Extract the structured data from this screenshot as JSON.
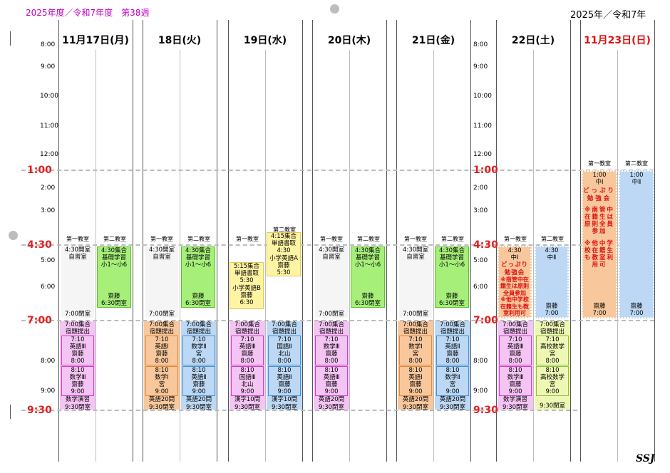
{
  "header": {
    "week_label": "2025年度／令和7年度　第38週",
    "year_label": "2025年／令和7年"
  },
  "days": {
    "mon": "11月17日(月)",
    "tue": "18日(火)",
    "wed": "19日(水)",
    "thu": "20日(木)",
    "fri": "21日(金)",
    "sat": "22日(土)",
    "sun": "11月23日(日)"
  },
  "times": {
    "t800": "8:00",
    "t900": "9:00",
    "t1000": "10:00",
    "t1100": "11:00",
    "t1200": "12:00",
    "t100": "1:00",
    "t200": "2:00",
    "t300": "3:00",
    "t430": "4:30",
    "t500": "5:00",
    "t600": "6:00",
    "t700": "7:00",
    "t930": "9:30"
  },
  "rooms": {
    "r1": "第一教室",
    "r2": "第二教室"
  },
  "t": {
    "jishu_open": "4:30開室",
    "jishu": "自習室",
    "close700": "7:00閉室",
    "g430": "4:30集合",
    "kiso": "基礎学習",
    "sho": "小1～小6",
    "saito": "齋藤",
    "close630": "6:30閉室",
    "g700": "7:00集合",
    "shukudai": "宿題提出",
    "t710": "7:10",
    "t800": "8:00",
    "t810": "8:10",
    "t900": "9:00",
    "eigo3": "英語Ⅲ",
    "sugaku3": "数学Ⅲ",
    "sugaku_ensyu": "数学演習",
    "close930": "9:30閉室",
    "eigo1": "英語Ⅰ",
    "sugaku1": "数学Ⅰ",
    "miya": "宮",
    "sugaku2": "数学Ⅱ",
    "eigo2": "英語Ⅱ",
    "eigo20": "英語20問",
    "kokugo3": "国語Ⅲ",
    "kanji10": "漢字10問",
    "kitayama": "北山",
    "kokugo2": "国語Ⅱ",
    "g415": "4:15集合",
    "tango_sho": "単語書取",
    "t430": "4:30",
    "sho_eigo_a": "小学英語A",
    "t530": "5:30",
    "g515": "5:15集合",
    "sho_eigo_b": "小学英語B",
    "t630": "6:30",
    "chu1": "中Ⅰ",
    "chu2": "中Ⅱ",
    "t700": "7:00",
    "koko_sugaku": "高校数学",
    "t100": "1:00",
    "dopuri": "どっぷり勉強会",
    "note1": "※南管中在籍生は原則全員参加",
    "note2": "※他中学校在籍生も教室利用可"
  },
  "signature": "SSJ",
  "colors": {
    "accent_red": "#e02020",
    "header_magenta": "#c000c0",
    "green": "#a6f07a",
    "pink": "#f4c4f4",
    "orange": "#f8c89c",
    "blue": "#bcd8f4",
    "yellow": "#fff4a4"
  }
}
